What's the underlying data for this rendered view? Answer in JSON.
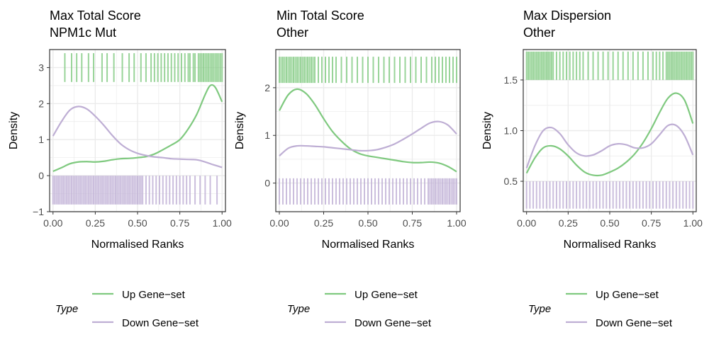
{
  "colors": {
    "up": "#7fc97f",
    "down": "#beaed4",
    "grid": "#ebebeb",
    "frame": "#333333"
  },
  "legend": {
    "title": "Type",
    "items": [
      "Up Gene−set",
      "Down Gene−set"
    ]
  },
  "chart_data": [
    {
      "type": "line",
      "title": [
        "Max Total Score",
        "NPM1c Mut"
      ],
      "xlabel": "Normalised Ranks",
      "ylabel": "Density",
      "xlim": [
        -0.02,
        1.02
      ],
      "ylim": [
        -1.0,
        3.5
      ],
      "xticks": [
        0.0,
        0.25,
        0.5,
        0.75,
        1.0
      ],
      "xtick_labels": [
        "0.00",
        "0.25",
        "0.50",
        "0.75",
        "1.00"
      ],
      "yticks": [
        -1,
        0,
        1,
        2,
        3
      ],
      "ytick_labels": [
        "−1",
        "0",
        "1",
        "2",
        "3"
      ],
      "series": [
        {
          "name": "Up Gene−set",
          "x": [
            0.0,
            0.05,
            0.1,
            0.15,
            0.2,
            0.25,
            0.3,
            0.35,
            0.4,
            0.45,
            0.5,
            0.55,
            0.6,
            0.65,
            0.7,
            0.75,
            0.8,
            0.85,
            0.9,
            0.93,
            0.96,
            1.0
          ],
          "y": [
            0.12,
            0.22,
            0.33,
            0.38,
            0.39,
            0.38,
            0.4,
            0.44,
            0.47,
            0.48,
            0.5,
            0.53,
            0.6,
            0.72,
            0.85,
            1.0,
            1.3,
            1.7,
            2.25,
            2.5,
            2.45,
            2.05
          ]
        },
        {
          "name": "Down Gene−set",
          "x": [
            0.0,
            0.05,
            0.1,
            0.15,
            0.2,
            0.25,
            0.3,
            0.35,
            0.4,
            0.45,
            0.5,
            0.55,
            0.6,
            0.65,
            0.7,
            0.75,
            0.8,
            0.85,
            0.9,
            0.95,
            1.0
          ],
          "y": [
            1.1,
            1.5,
            1.82,
            1.92,
            1.85,
            1.65,
            1.4,
            1.12,
            0.88,
            0.72,
            0.62,
            0.56,
            0.52,
            0.5,
            0.47,
            0.46,
            0.45,
            0.44,
            0.38,
            0.3,
            0.23
          ]
        }
      ],
      "rugs": [
        {
          "name": "Up Gene−set",
          "ymin": 2.6,
          "ymax": 3.4,
          "x": [
            0.07,
            0.11,
            0.14,
            0.17,
            0.21,
            0.24,
            0.29,
            0.32,
            0.36,
            0.41,
            0.45,
            0.48,
            0.52,
            0.55,
            0.58,
            0.6,
            0.62,
            0.64,
            0.66,
            0.68,
            0.7,
            0.72,
            0.74,
            0.76,
            0.78,
            0.8,
            0.81,
            0.83,
            0.84,
            0.86,
            0.87,
            0.88,
            0.89,
            0.9,
            0.91,
            0.92,
            0.93,
            0.94,
            0.95,
            0.96,
            0.97,
            0.98,
            0.99,
            1.0
          ]
        },
        {
          "name": "Down Gene−set",
          "ymin": -0.8,
          "ymax": 0.0,
          "x": [
            0.0,
            0.01,
            0.02,
            0.03,
            0.04,
            0.05,
            0.06,
            0.07,
            0.08,
            0.09,
            0.1,
            0.11,
            0.12,
            0.13,
            0.14,
            0.15,
            0.16,
            0.17,
            0.18,
            0.19,
            0.2,
            0.21,
            0.22,
            0.23,
            0.24,
            0.25,
            0.26,
            0.27,
            0.28,
            0.29,
            0.3,
            0.31,
            0.32,
            0.33,
            0.34,
            0.35,
            0.36,
            0.37,
            0.38,
            0.39,
            0.4,
            0.41,
            0.42,
            0.43,
            0.44,
            0.45,
            0.46,
            0.47,
            0.48,
            0.49,
            0.5,
            0.51,
            0.52,
            0.53,
            0.55,
            0.57,
            0.59,
            0.61,
            0.63,
            0.65,
            0.67,
            0.69,
            0.71,
            0.73,
            0.75,
            0.77,
            0.79,
            0.81,
            0.84,
            0.87,
            0.9,
            0.93,
            0.97
          ]
        }
      ]
    },
    {
      "type": "line",
      "title": [
        "Min Total Score",
        "Other"
      ],
      "xlabel": "Normalised Ranks",
      "ylabel": "Density",
      "xlim": [
        -0.02,
        1.02
      ],
      "ylim": [
        -0.6,
        2.8
      ],
      "xticks": [
        0.0,
        0.25,
        0.5,
        0.75,
        1.0
      ],
      "xtick_labels": [
        "0.00",
        "0.25",
        "0.50",
        "0.75",
        "1.00"
      ],
      "yticks": [
        0,
        1,
        2
      ],
      "ytick_labels": [
        "0",
        "1",
        "2"
      ],
      "series": [
        {
          "name": "Up Gene−set",
          "x": [
            0.0,
            0.05,
            0.1,
            0.15,
            0.2,
            0.25,
            0.3,
            0.35,
            0.4,
            0.45,
            0.5,
            0.55,
            0.6,
            0.65,
            0.7,
            0.75,
            0.8,
            0.85,
            0.9,
            0.95,
            1.0
          ],
          "y": [
            1.52,
            1.85,
            1.97,
            1.88,
            1.65,
            1.35,
            1.08,
            0.88,
            0.72,
            0.62,
            0.57,
            0.54,
            0.51,
            0.48,
            0.45,
            0.43,
            0.43,
            0.44,
            0.42,
            0.35,
            0.24
          ]
        },
        {
          "name": "Down Gene−set",
          "x": [
            0.0,
            0.05,
            0.1,
            0.15,
            0.2,
            0.25,
            0.3,
            0.35,
            0.4,
            0.45,
            0.5,
            0.55,
            0.6,
            0.65,
            0.7,
            0.75,
            0.8,
            0.85,
            0.9,
            0.95,
            1.0
          ],
          "y": [
            0.57,
            0.73,
            0.78,
            0.78,
            0.77,
            0.76,
            0.74,
            0.72,
            0.7,
            0.68,
            0.68,
            0.7,
            0.75,
            0.82,
            0.92,
            1.03,
            1.15,
            1.26,
            1.29,
            1.22,
            1.03
          ]
        }
      ],
      "rugs": [
        {
          "name": "Up Gene−set",
          "ymin": 2.1,
          "ymax": 2.65,
          "x": [
            0.0,
            0.01,
            0.02,
            0.03,
            0.04,
            0.05,
            0.06,
            0.07,
            0.08,
            0.09,
            0.1,
            0.11,
            0.12,
            0.13,
            0.14,
            0.15,
            0.16,
            0.17,
            0.18,
            0.19,
            0.2,
            0.22,
            0.24,
            0.26,
            0.28,
            0.3,
            0.32,
            0.35,
            0.38,
            0.41,
            0.44,
            0.47,
            0.5,
            0.53,
            0.56,
            0.59,
            0.62,
            0.65,
            0.68,
            0.71,
            0.74,
            0.77,
            0.8,
            0.83,
            0.86,
            0.88,
            0.9,
            0.92,
            0.94,
            0.96,
            0.98,
            1.0
          ]
        },
        {
          "name": "Down Gene−set",
          "ymin": -0.45,
          "ymax": 0.1,
          "x": [
            0.0,
            0.02,
            0.04,
            0.06,
            0.08,
            0.1,
            0.12,
            0.14,
            0.16,
            0.18,
            0.2,
            0.22,
            0.24,
            0.26,
            0.28,
            0.3,
            0.32,
            0.34,
            0.36,
            0.38,
            0.4,
            0.42,
            0.44,
            0.46,
            0.48,
            0.5,
            0.52,
            0.54,
            0.56,
            0.58,
            0.6,
            0.62,
            0.64,
            0.66,
            0.68,
            0.7,
            0.72,
            0.74,
            0.76,
            0.78,
            0.8,
            0.82,
            0.84,
            0.85,
            0.86,
            0.87,
            0.88,
            0.89,
            0.9,
            0.91,
            0.92,
            0.93,
            0.94,
            0.95,
            0.96,
            0.97,
            0.98,
            0.99,
            1.0
          ]
        }
      ]
    },
    {
      "type": "line",
      "title": [
        "Max Dispersion",
        "Other"
      ],
      "xlabel": "Normalised Ranks",
      "ylabel": "Density",
      "xlim": [
        -0.02,
        1.02
      ],
      "ylim": [
        0.2,
        1.8
      ],
      "xticks": [
        0.0,
        0.25,
        0.5,
        0.75,
        1.0
      ],
      "xtick_labels": [
        "0.00",
        "0.25",
        "0.50",
        "0.75",
        "1.00"
      ],
      "yticks": [
        0.5,
        1.0,
        1.5
      ],
      "ytick_labels": [
        "0.5",
        "1.0",
        "1.5"
      ],
      "series": [
        {
          "name": "Up Gene−set",
          "x": [
            0.0,
            0.05,
            0.1,
            0.15,
            0.2,
            0.25,
            0.3,
            0.35,
            0.4,
            0.45,
            0.5,
            0.55,
            0.6,
            0.65,
            0.7,
            0.75,
            0.8,
            0.85,
            0.9,
            0.95,
            1.0
          ],
          "y": [
            0.58,
            0.73,
            0.83,
            0.85,
            0.82,
            0.75,
            0.66,
            0.59,
            0.56,
            0.56,
            0.59,
            0.63,
            0.69,
            0.77,
            0.88,
            1.02,
            1.18,
            1.32,
            1.37,
            1.3,
            1.07
          ]
        },
        {
          "name": "Down Gene−set",
          "x": [
            0.0,
            0.05,
            0.1,
            0.15,
            0.2,
            0.25,
            0.3,
            0.35,
            0.4,
            0.45,
            0.5,
            0.55,
            0.6,
            0.65,
            0.7,
            0.75,
            0.8,
            0.85,
            0.9,
            0.95,
            1.0
          ],
          "y": [
            0.63,
            0.85,
            1.0,
            1.03,
            0.97,
            0.86,
            0.78,
            0.75,
            0.76,
            0.8,
            0.85,
            0.87,
            0.86,
            0.83,
            0.83,
            0.87,
            0.96,
            1.05,
            1.05,
            0.95,
            0.76
          ]
        }
      ],
      "rugs": [
        {
          "name": "Up Gene−set",
          "ymin": 1.5,
          "ymax": 1.78,
          "x": [
            0.0,
            0.01,
            0.02,
            0.03,
            0.04,
            0.05,
            0.06,
            0.07,
            0.08,
            0.09,
            0.1,
            0.11,
            0.12,
            0.13,
            0.14,
            0.15,
            0.16,
            0.18,
            0.2,
            0.22,
            0.24,
            0.26,
            0.28,
            0.3,
            0.32,
            0.34,
            0.37,
            0.4,
            0.43,
            0.46,
            0.49,
            0.52,
            0.55,
            0.58,
            0.61,
            0.64,
            0.67,
            0.7,
            0.73,
            0.76,
            0.78,
            0.8,
            0.82,
            0.84,
            0.85,
            0.86,
            0.87,
            0.88,
            0.89,
            0.9,
            0.91,
            0.92,
            0.93,
            0.94,
            0.95,
            0.96,
            0.97,
            0.98,
            0.99,
            1.0
          ]
        },
        {
          "name": "Down Gene−set",
          "ymin": 0.23,
          "ymax": 0.5,
          "x": [
            0.0,
            0.02,
            0.04,
            0.06,
            0.08,
            0.1,
            0.12,
            0.14,
            0.16,
            0.18,
            0.2,
            0.22,
            0.24,
            0.26,
            0.28,
            0.3,
            0.32,
            0.34,
            0.36,
            0.38,
            0.4,
            0.42,
            0.44,
            0.46,
            0.48,
            0.5,
            0.52,
            0.54,
            0.56,
            0.58,
            0.6,
            0.62,
            0.64,
            0.66,
            0.68,
            0.7,
            0.72,
            0.74,
            0.76,
            0.78,
            0.8,
            0.82,
            0.84,
            0.86,
            0.88,
            0.9,
            0.92,
            0.94,
            0.96,
            0.98,
            1.0
          ]
        }
      ]
    }
  ]
}
